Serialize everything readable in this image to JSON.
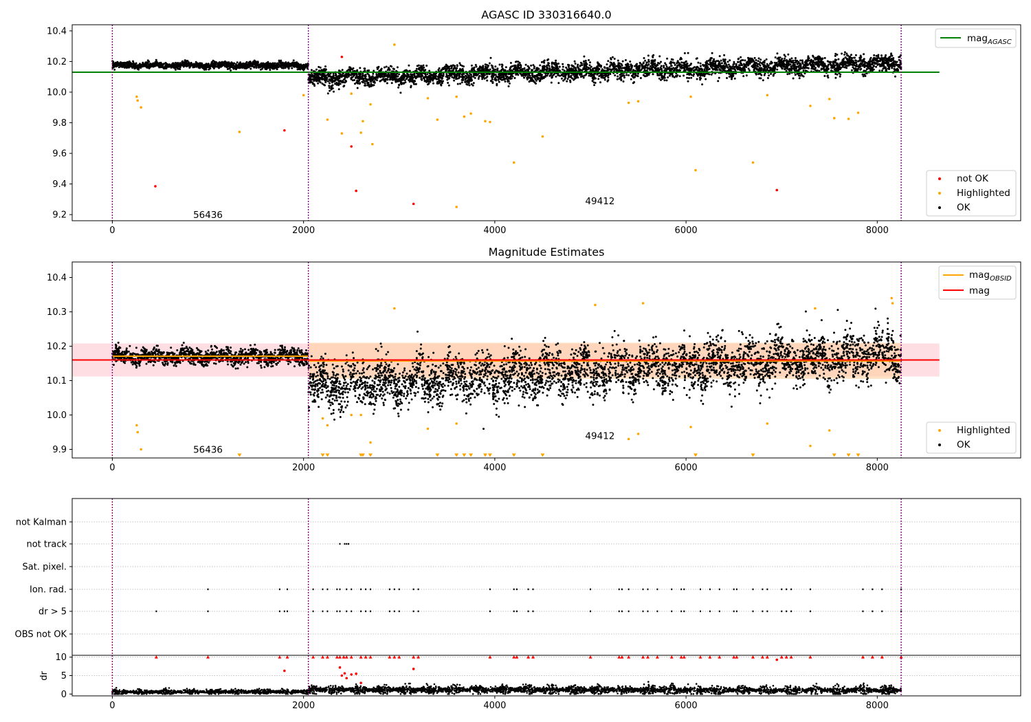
{
  "chart_data": [
    {
      "type": "scatter",
      "title": "AGASC ID 330316640.0",
      "xlim": [
        -420,
        9500
      ],
      "ylim": [
        9.16,
        10.44
      ],
      "xticks": [
        0,
        2000,
        4000,
        6000,
        8000
      ],
      "yticks": [
        9.2,
        9.4,
        9.6,
        9.8,
        10.0,
        10.2,
        10.4
      ],
      "vlines": [
        0,
        2050,
        8250
      ],
      "hlines": [
        {
          "name": "mag_AGASC",
          "y": 10.13,
          "x": [
            -420,
            8650
          ],
          "color": "#008000"
        }
      ],
      "annotations": [
        {
          "text": "56436",
          "x": 1000,
          "y": 9.2
        },
        {
          "text": "49412",
          "x": 5100,
          "y": 9.29
        }
      ],
      "legend": {
        "upper": {
          "position": "top-right",
          "entries": [
            {
              "label": "mag",
              "sub": "AGASC",
              "color": "#008000"
            }
          ]
        },
        "lower": {
          "position": "bottom-right",
          "entries": [
            {
              "label": "not OK",
              "color": "#ff0000"
            },
            {
              "label": "Highlighted",
              "color": "#ffa500"
            },
            {
              "label": "OK",
              "color": "#000000"
            }
          ]
        }
      },
      "series": [
        {
          "name": "OK",
          "color": "#000000",
          "segments": [
            {
              "x": [
                0,
                2050
              ],
              "center": 10.175,
              "spread": 0.018
            },
            {
              "x": [
                2050,
                8250
              ],
              "center_start": 10.09,
              "center_end": 10.19,
              "spread": 0.05
            }
          ]
        },
        {
          "name": "Highlighted",
          "color": "#ffa500",
          "points": [
            [
              255,
              9.97
            ],
            [
              265,
              9.945
            ],
            [
              300,
              9.9
            ],
            [
              1330,
              9.74
            ],
            [
              2400,
              9.73
            ],
            [
              2250,
              9.82
            ],
            [
              2500,
              9.99
            ],
            [
              2620,
              9.81
            ],
            [
              2600,
              9.735
            ],
            [
              2700,
              9.92
            ],
            [
              2720,
              9.66
            ],
            [
              2950,
              10.31
            ],
            [
              3300,
              9.96
            ],
            [
              3400,
              9.82
            ],
            [
              3600,
              9.97
            ],
            [
              3680,
              9.84
            ],
            [
              3750,
              9.86
            ],
            [
              3900,
              9.81
            ],
            [
              3950,
              9.805
            ],
            [
              4200,
              9.54
            ],
            [
              4500,
              9.71
            ],
            [
              5400,
              9.93
            ],
            [
              5500,
              9.94
            ],
            [
              6050,
              9.97
            ],
            [
              6100,
              9.49
            ],
            [
              6700,
              9.54
            ],
            [
              6850,
              9.98
            ],
            [
              7300,
              9.91
            ],
            [
              7500,
              9.955
            ],
            [
              7550,
              9.83
            ],
            [
              7700,
              9.825
            ],
            [
              7800,
              9.865
            ],
            [
              3600,
              9.25
            ],
            [
              2000,
              9.98
            ]
          ]
        },
        {
          "name": "not OK",
          "color": "#ff0000",
          "points": [
            [
              450,
              9.385
            ],
            [
              1800,
              9.75
            ],
            [
              2400,
              10.23
            ],
            [
              2500,
              9.645
            ],
            [
              2550,
              9.355
            ],
            [
              3150,
              9.27
            ],
            [
              6950,
              9.36
            ]
          ]
        }
      ]
    },
    {
      "type": "scatter",
      "title": "Magnitude Estimates",
      "xlim": [
        -420,
        9500
      ],
      "ylim": [
        9.875,
        10.445
      ],
      "xticks": [
        0,
        2000,
        4000,
        6000,
        8000
      ],
      "yticks": [
        9.9,
        10.0,
        10.1,
        10.2,
        10.3,
        10.4
      ],
      "vlines": [
        0,
        2050,
        8250
      ],
      "hlines": [
        {
          "name": "mag_OBSID",
          "y": 10.171,
          "x": [
            0,
            2050
          ],
          "color": "#ffa500"
        },
        {
          "name": "mag_OBSID",
          "y": 10.157,
          "x": [
            2050,
            8250
          ],
          "color": "#ffa500"
        },
        {
          "name": "mag",
          "y": 10.16,
          "x": [
            -420,
            8650
          ],
          "color": "#ff0000"
        }
      ],
      "bands": [
        {
          "x": [
            -420,
            8650
          ],
          "y": [
            10.112,
            10.208
          ],
          "color": "#ffb6c1"
        },
        {
          "x": [
            2050,
            8250
          ],
          "y": [
            10.105,
            10.21
          ],
          "color": "#ffd0a0"
        }
      ],
      "annotations": [
        {
          "text": "56436",
          "x": 1000,
          "y": 9.9
        },
        {
          "text": "49412",
          "x": 5100,
          "y": 9.94
        }
      ],
      "legend": {
        "upper": {
          "position": "top-right",
          "entries": [
            {
              "label": "mag",
              "sub": "OBSID",
              "color": "#ffa500"
            },
            {
              "label": "mag",
              "sub": "",
              "color": "#ff0000"
            }
          ]
        },
        "lower": {
          "position": "bottom-right",
          "entries": [
            {
              "label": "Highlighted",
              "color": "#ffa500"
            },
            {
              "label": "OK",
              "color": "#000000"
            }
          ]
        }
      },
      "series": [
        {
          "name": "OK",
          "color": "#000000",
          "segments": [
            {
              "x": [
                0,
                2050
              ],
              "center": 10.17,
              "spread": 0.02
            },
            {
              "x": [
                2050,
                8250
              ],
              "center_start": 10.08,
              "center_end": 10.18,
              "spread": 0.06
            }
          ]
        },
        {
          "name": "Highlighted",
          "color": "#ffa500",
          "points": [
            [
              255,
              9.97
            ],
            [
              265,
              9.95
            ],
            [
              300,
              9.9
            ],
            [
              2200,
              9.99
            ],
            [
              2250,
              9.97
            ],
            [
              2500,
              10.0
            ],
            [
              2600,
              10.0
            ],
            [
              2700,
              9.92
            ],
            [
              3300,
              9.96
            ],
            [
              3600,
              9.975
            ],
            [
              5400,
              9.93
            ],
            [
              5500,
              9.945
            ],
            [
              6050,
              9.965
            ],
            [
              6850,
              9.975
            ],
            [
              7300,
              9.91
            ],
            [
              7500,
              9.955
            ],
            [
              2950,
              10.31
            ],
            [
              7350,
              10.31
            ],
            [
              8150,
              10.34
            ],
            [
              8160,
              10.325
            ],
            [
              5050,
              10.32
            ],
            [
              5550,
              10.325
            ]
          ]
        },
        {
          "name": "Highlighted (off scale)",
          "color": "#ffa500",
          "marker": "triangle-down",
          "points": [
            [
              1330,
              9.88
            ],
            [
              2200,
              9.88
            ],
            [
              2250,
              9.88
            ],
            [
              2600,
              9.88
            ],
            [
              2620,
              9.88
            ],
            [
              2700,
              9.88
            ],
            [
              3400,
              9.88
            ],
            [
              3600,
              9.88
            ],
            [
              3680,
              9.88
            ],
            [
              3750,
              9.88
            ],
            [
              3900,
              9.88
            ],
            [
              3950,
              9.88
            ],
            [
              4200,
              9.88
            ],
            [
              4500,
              9.88
            ],
            [
              6100,
              9.88
            ],
            [
              6700,
              9.88
            ],
            [
              7550,
              9.88
            ],
            [
              7700,
              9.88
            ],
            [
              7800,
              9.88
            ]
          ]
        }
      ]
    },
    {
      "type": "scatter",
      "title": "",
      "xlim": [
        -420,
        9500
      ],
      "xticks": [],
      "vlines": [
        0,
        2050,
        8250
      ],
      "categories": [
        "not Kalman",
        "not track",
        "Sat. pixel.",
        "Ion. rad.",
        "dr > 5",
        "OBS not OK"
      ],
      "flags": {
        "not track": [
          2380,
          2430,
          2450,
          2470
        ],
        "Ion. rad.": [
          1000,
          1750,
          1830,
          2100,
          2200,
          2250,
          2350,
          2380,
          2450,
          2500,
          2600,
          2650,
          2700,
          2900,
          2950,
          3000,
          3150,
          3200,
          3950,
          4200,
          4230,
          4350,
          4400,
          5000,
          5300,
          5330,
          5400,
          5550,
          5600,
          5700,
          5850,
          5950,
          5980,
          6150,
          6250,
          6350,
          6500,
          6530,
          6700,
          6800,
          6850,
          7000,
          7050,
          7100,
          7300,
          7850,
          7950,
          8050,
          8250
        ],
        "dr > 5": [
          460,
          1000,
          1750,
          1800,
          1830,
          2100,
          2200,
          2250,
          2350,
          2380,
          2450,
          2500,
          2600,
          2650,
          2700,
          2900,
          2950,
          3000,
          3150,
          3200,
          3950,
          4200,
          4230,
          4350,
          4400,
          5000,
          5300,
          5330,
          5400,
          5550,
          5600,
          5700,
          5850,
          5950,
          5980,
          6150,
          6250,
          6350,
          6500,
          6530,
          6700,
          6800,
          6850,
          7000,
          7050,
          7100,
          7300,
          7850,
          7950,
          8050,
          8250
        ]
      }
    },
    {
      "type": "scatter",
      "title": "",
      "ylabel": "dr",
      "xlim": [
        -420,
        9500
      ],
      "ylim": [
        -0.5,
        10.5
      ],
      "xticks": [
        0,
        2000,
        4000,
        6000,
        8000
      ],
      "yticks": [
        0,
        5,
        10
      ],
      "vlines": [
        0,
        2050,
        8250
      ],
      "series": [
        {
          "name": "OK",
          "color": "#000000",
          "segments": [
            {
              "x": [
                0,
                2050
              ],
              "center": 0.6,
              "spread": 0.35
            },
            {
              "x": [
                2050,
                8250
              ],
              "center_start": 1.2,
              "center_end": 1.0,
              "spread": 0.6
            }
          ]
        },
        {
          "name": "not OK",
          "color": "#ff0000",
          "marker": "triangle-up",
          "points": [
            [
              460,
              10
            ],
            [
              1000,
              10
            ],
            [
              1750,
              10
            ],
            [
              1830,
              10
            ],
            [
              2100,
              10
            ],
            [
              2200,
              10
            ],
            [
              2250,
              10
            ],
            [
              2350,
              10
            ],
            [
              2380,
              10
            ],
            [
              2420,
              10
            ],
            [
              2450,
              10
            ],
            [
              2500,
              10
            ],
            [
              2600,
              10
            ],
            [
              2650,
              10
            ],
            [
              2700,
              10
            ],
            [
              2900,
              10
            ],
            [
              2950,
              10
            ],
            [
              3000,
              10
            ],
            [
              3150,
              10
            ],
            [
              3200,
              10
            ],
            [
              3950,
              10
            ],
            [
              4200,
              10
            ],
            [
              4230,
              10
            ],
            [
              4350,
              10
            ],
            [
              4400,
              10
            ],
            [
              5000,
              10
            ],
            [
              5300,
              10
            ],
            [
              5330,
              10
            ],
            [
              5400,
              10
            ],
            [
              5550,
              10
            ],
            [
              5600,
              10
            ],
            [
              5700,
              10
            ],
            [
              5850,
              10
            ],
            [
              5950,
              10
            ],
            [
              5980,
              10
            ],
            [
              6150,
              10
            ],
            [
              6250,
              10
            ],
            [
              6350,
              10
            ],
            [
              6500,
              10
            ],
            [
              6530,
              10
            ],
            [
              6700,
              10
            ],
            [
              6800,
              10
            ],
            [
              6850,
              10
            ],
            [
              7000,
              10
            ],
            [
              7050,
              10
            ],
            [
              7100,
              10
            ],
            [
              7300,
              10
            ],
            [
              7850,
              10
            ],
            [
              7950,
              10
            ],
            [
              8050,
              10
            ],
            [
              8250,
              10
            ]
          ]
        },
        {
          "name": "not OK (dr)",
          "color": "#ff0000",
          "points": [
            [
              1800,
              6.3
            ],
            [
              2380,
              7.2
            ],
            [
              2400,
              5.0
            ],
            [
              2430,
              5.6
            ],
            [
              2450,
              4.3
            ],
            [
              2500,
              5.3
            ],
            [
              2550,
              5.5
            ],
            [
              3150,
              6.8
            ],
            [
              2600,
              3.0
            ],
            [
              6950,
              9.3
            ]
          ]
        }
      ]
    }
  ]
}
